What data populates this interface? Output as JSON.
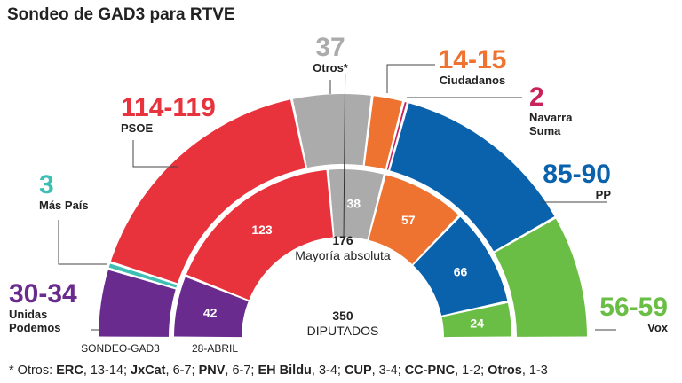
{
  "title": "Sondeo de GAD3 para RTVE",
  "colors": {
    "Unidas Podemos": "#6a2b8e",
    "Más País": "#3fbfb4",
    "PSOE": "#e8323c",
    "Otros": "#ababab",
    "Ciudadanos": "#ef7330",
    "Navarra Suma": "#c8245a",
    "PP": "#0a62ac",
    "Vox": "#6bbe45"
  },
  "center": {
    "majority_value": "176",
    "majority_label": "Mayoría absoluta",
    "total_value": "350",
    "total_label": "DIPUTADOS"
  },
  "chart_data": {
    "type": "pie",
    "subtype": "parliament-hemicycle",
    "title": "Sondeo de GAD3 para RTVE",
    "total_seats": 350,
    "majority": 176,
    "rings": [
      {
        "name": "SONDEO-GAD3",
        "parties": [
          {
            "party": "Unidas Podemos",
            "range": "30-34",
            "value": 32
          },
          {
            "party": "Más País",
            "range": "3",
            "value": 3
          },
          {
            "party": "PSOE",
            "range": "114-119",
            "value": 116.5
          },
          {
            "party": "Otros",
            "label": "Otros*",
            "range": "37",
            "value": 37
          },
          {
            "party": "Ciudadanos",
            "range": "14-15",
            "value": 14.5
          },
          {
            "party": "Navarra Suma",
            "range": "2",
            "value": 2
          },
          {
            "party": "PP",
            "range": "85-90",
            "value": 87.5
          },
          {
            "party": "Vox",
            "range": "56-59",
            "value": 57.5
          }
        ]
      },
      {
        "name": "28-ABRIL",
        "parties": [
          {
            "party": "Unidas Podemos",
            "value": 42
          },
          {
            "party": "PSOE",
            "value": 123
          },
          {
            "party": "Otros",
            "value": 38
          },
          {
            "party": "Ciudadanos",
            "value": 57
          },
          {
            "party": "PP",
            "value": 66
          },
          {
            "party": "Vox",
            "value": 24
          }
        ]
      }
    ],
    "outer_labels": {
      "Unidas Podemos": {
        "range": "30-34",
        "name_lines": [
          "Unidas",
          "Podemos"
        ]
      },
      "Más País": {
        "range": "3",
        "name_lines": [
          "Más País"
        ]
      },
      "PSOE": {
        "range": "114-119",
        "name_lines": [
          "PSOE"
        ]
      },
      "Otros": {
        "range": "37",
        "name_lines": [
          "Otros*"
        ]
      },
      "Ciudadanos": {
        "range": "14-15",
        "name_lines": [
          "Ciudadanos"
        ]
      },
      "Navarra Suma": {
        "range": "2",
        "name_lines": [
          "Navarra",
          "Suma"
        ]
      },
      "PP": {
        "range": "85-90",
        "name_lines": [
          "PP"
        ]
      },
      "Vox": {
        "range": "56-59",
        "name_lines": [
          "Vox"
        ]
      }
    }
  },
  "footnote": {
    "prefix": "* Otros: ",
    "items": [
      {
        "name": "ERC",
        "value": "13-14"
      },
      {
        "name": "JxCat",
        "value": "6-7"
      },
      {
        "name": "PNV",
        "value": "6-7"
      },
      {
        "name": "EH Bildu",
        "value": "3-4"
      },
      {
        "name": "CUP",
        "value": "3-4"
      },
      {
        "name": "CC-PNC",
        "value": "1-2"
      },
      {
        "name": "Otros",
        "value": "1-3"
      }
    ]
  }
}
